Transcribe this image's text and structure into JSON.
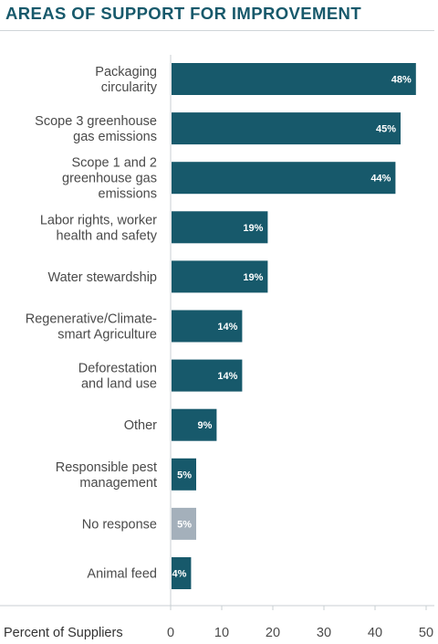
{
  "title": "AREAS OF SUPPORT FOR IMPROVEMENT",
  "colors": {
    "bar": "#17596b",
    "bar_muted": "#a4b0bb",
    "title": "#17596b",
    "axis": "#c8cfd3"
  },
  "chart_data": {
    "type": "bar",
    "orientation": "horizontal",
    "categories": [
      [
        "Packaging",
        "circularity"
      ],
      [
        "Scope 3 greenhouse",
        "gas emissions"
      ],
      [
        "Scope 1 and 2",
        "greenhouse gas",
        "emissions"
      ],
      [
        "Labor rights, worker",
        "health and safety"
      ],
      [
        "Water stewardship"
      ],
      [
        "Regenerative/Climate-",
        "smart Agriculture"
      ],
      [
        "Deforestation",
        "and land use"
      ],
      [
        "Other"
      ],
      [
        "Responsible pest",
        "management"
      ],
      [
        "No response"
      ],
      [
        "Animal feed"
      ]
    ],
    "values": [
      48,
      45,
      44,
      19,
      19,
      14,
      14,
      9,
      5,
      5,
      4
    ],
    "labels": [
      "48%",
      "45%",
      "44%",
      "19%",
      "19%",
      "14%",
      "14%",
      "9%",
      "5%",
      "5%",
      "4%"
    ],
    "muted": [
      false,
      false,
      false,
      false,
      false,
      false,
      false,
      false,
      false,
      true,
      false
    ],
    "xlabel": "Percent of Suppliers",
    "xlim": [
      0,
      50
    ],
    "xticks": [
      0,
      10,
      20,
      30,
      40,
      50
    ],
    "grid": false
  }
}
